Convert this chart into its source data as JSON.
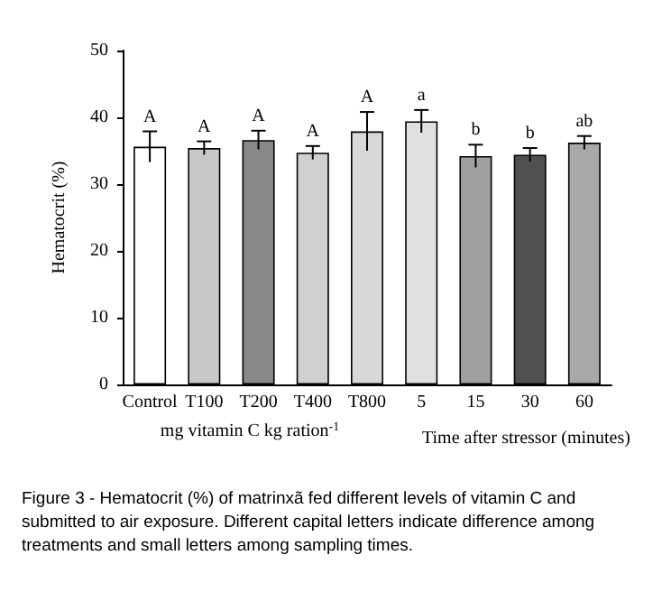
{
  "chart_data": {
    "type": "bar",
    "ylabel": "Hematocrit (%)",
    "xlabel": "mg vitamin C kg ration$^{-1}$",
    "categories": [
      "Control",
      "T100",
      "T200",
      "T400",
      "T800",
      "5",
      "15",
      "30",
      "60"
    ],
    "values": [
      35.6,
      35.4,
      36.6,
      34.7,
      37.9,
      39.4,
      34.2,
      34.4,
      36.2
    ],
    "errors": [
      2.3,
      1.0,
      1.4,
      1.0,
      2.9,
      1.7,
      1.7,
      1.0,
      1.0
    ],
    "colors": [
      "#ffffff",
      "#c8c8c8",
      "#888888",
      "#d0d0d0",
      "#d8d8d8",
      "#e0e0e0",
      "#a0a0a0",
      "#505050",
      "#a8a8a8"
    ],
    "ylim": [
      0,
      50
    ],
    "yticks": [
      0,
      10,
      20,
      30,
      40,
      50
    ],
    "grid": false,
    "annotations": [
      {
        "text": "A",
        "x": "Control",
        "y": 37.9
      },
      {
        "text": "A",
        "x": "T100",
        "y": 36.4
      },
      {
        "text": "A",
        "x": "T200",
        "y": 38.0
      },
      {
        "text": "A",
        "x": "T400",
        "y": 35.7
      },
      {
        "text": "A",
        "x": "T800",
        "y": 40.8
      },
      {
        "text": "a",
        "x": "5",
        "y": 41.1
      },
      {
        "text": "b",
        "x": "15",
        "y": 35.9
      },
      {
        "text": "b",
        "x": "30",
        "y": 35.4
      },
      {
        "text": "ab",
        "x": "60",
        "y": 37.2
      },
      "Time after stressor (minutes)",
      "Figure 3 - Hematocrit (%) of matrinxã fed different levels of vitamin C and submitted to air exposure. Different capital letters indicate difference among treatments and small letters among sampling times."
    ]
  }
}
